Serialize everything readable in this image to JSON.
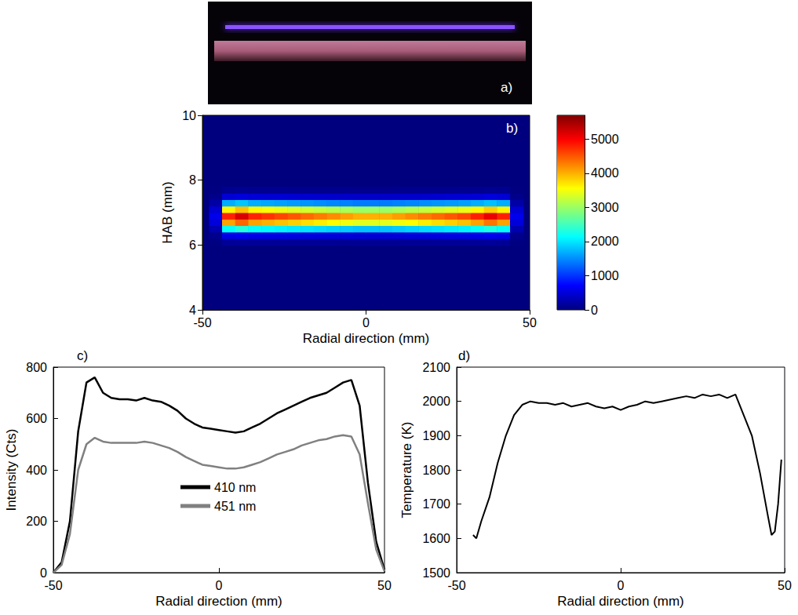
{
  "chart_data": [
    {
      "type": "image",
      "panel_label": "a)"
    },
    {
      "type": "heatmap",
      "panel_label": "b)",
      "x_label": "Radial direction (mm)",
      "y_label": "HAB (mm)",
      "xlim": [
        -50,
        50
      ],
      "xticks": [
        -50,
        0,
        50
      ],
      "ylim": [
        4,
        10
      ],
      "yticks": [
        4,
        6,
        8,
        10
      ],
      "x": [
        -46,
        -42,
        -38,
        -34,
        -30,
        -26,
        -22,
        -18,
        -14,
        -10,
        -6,
        -2,
        2,
        6,
        10,
        14,
        18,
        22,
        26,
        30,
        34,
        38,
        42,
        46
      ],
      "y": [
        6.1,
        6.3,
        6.5,
        6.7,
        6.9,
        7.1,
        7.3,
        7.5,
        7.7
      ],
      "values": [
        [
          18,
          144,
          156,
          144,
          141,
          138,
          135,
          132,
          129,
          126,
          123,
          120,
          120,
          120,
          123,
          126,
          129,
          132,
          135,
          138,
          144,
          153,
          144,
          18
        ],
        [
          72,
          576,
          624,
          576,
          564,
          552,
          540,
          528,
          516,
          504,
          492,
          480,
          480,
          480,
          492,
          504,
          516,
          528,
          540,
          552,
          576,
          612,
          576,
          72
        ],
        [
          270,
          2160,
          2340,
          2160,
          2115,
          2070,
          2025,
          1980,
          1935,
          1890,
          1845,
          1800,
          1800,
          1800,
          1845,
          1890,
          1935,
          1980,
          2025,
          2070,
          2160,
          2295,
          2160,
          270
        ],
        [
          510,
          4080,
          4420,
          4080,
          3995,
          3910,
          3825,
          3740,
          3655,
          3570,
          3485,
          3400,
          3400,
          3400,
          3485,
          3570,
          3655,
          3740,
          3825,
          3910,
          4080,
          4335,
          4080,
          510
        ],
        [
          600,
          4800,
          5200,
          4800,
          4700,
          4600,
          4500,
          4400,
          4300,
          4200,
          4100,
          4000,
          4000,
          4000,
          4100,
          4200,
          4300,
          4400,
          4500,
          4600,
          4800,
          5100,
          4800,
          600
        ],
        [
          450,
          3600,
          3900,
          3600,
          3525,
          3450,
          3375,
          3300,
          3225,
          3150,
          3075,
          3000,
          3000,
          3000,
          3075,
          3150,
          3225,
          3300,
          3375,
          3450,
          3600,
          3825,
          3600,
          450
        ],
        [
          210,
          1680,
          1820,
          1680,
          1645,
          1610,
          1575,
          1540,
          1505,
          1470,
          1435,
          1400,
          1400,
          1400,
          1435,
          1470,
          1505,
          1540,
          1575,
          1610,
          1680,
          1785,
          1680,
          210
        ],
        [
          60,
          480,
          520,
          480,
          470,
          460,
          450,
          440,
          430,
          420,
          410,
          400,
          400,
          400,
          410,
          420,
          430,
          440,
          450,
          460,
          480,
          510,
          480,
          60
        ],
        [
          12,
          96,
          104,
          96,
          94,
          92,
          90,
          88,
          86,
          84,
          82,
          80,
          80,
          80,
          82,
          84,
          86,
          88,
          90,
          92,
          96,
          102,
          96,
          12
        ]
      ],
      "colorbar": {
        "range": [
          0,
          5700
        ],
        "ticks": [
          0,
          1000,
          2000,
          3000,
          4000,
          5000
        ]
      }
    },
    {
      "type": "line",
      "panel_label": "c)",
      "x_label": "Radial direction (mm)",
      "y_label": "Intensity (Cts)",
      "xlim": [
        -50,
        50
      ],
      "xticks": [
        -50,
        0,
        50
      ],
      "ylim": [
        0,
        800
      ],
      "yticks": [
        0,
        200,
        400,
        600,
        800
      ],
      "legend": "bottom",
      "x": [
        -50,
        -47.5,
        -45,
        -42.5,
        -40,
        -37.5,
        -35,
        -32.5,
        -30,
        -27.5,
        -25,
        -22.5,
        -20,
        -17.5,
        -15,
        -12.5,
        -10,
        -7.5,
        -5,
        -2.5,
        0,
        2.5,
        5,
        7.5,
        10,
        12.5,
        15,
        17.5,
        20,
        22.5,
        25,
        27.5,
        30,
        32.5,
        35,
        37.5,
        40,
        42.5,
        45,
        47.5,
        50
      ],
      "series": [
        {
          "name": "410 nm",
          "color": "#000000",
          "values": [
            0,
            40,
            200,
            550,
            740,
            760,
            700,
            680,
            675,
            675,
            670,
            680,
            670,
            665,
            650,
            630,
            600,
            580,
            565,
            560,
            555,
            550,
            545,
            550,
            565,
            580,
            600,
            620,
            635,
            650,
            665,
            680,
            690,
            700,
            720,
            740,
            750,
            650,
            350,
            120,
            10
          ]
        },
        {
          "name": "451 nm",
          "color": "#808080",
          "values": [
            0,
            30,
            150,
            400,
            500,
            525,
            510,
            505,
            505,
            505,
            505,
            510,
            505,
            495,
            485,
            470,
            450,
            435,
            420,
            415,
            410,
            405,
            405,
            410,
            420,
            430,
            445,
            460,
            470,
            480,
            495,
            505,
            515,
            520,
            530,
            535,
            530,
            460,
            270,
            90,
            5
          ]
        }
      ]
    },
    {
      "type": "line",
      "panel_label": "d)",
      "x_label": "Radial direction (mm)",
      "y_label": "Temperature (K)",
      "xlim": [
        -50,
        50
      ],
      "xticks": [
        -50,
        0,
        50
      ],
      "ylim": [
        1500,
        2100
      ],
      "yticks": [
        1500,
        1600,
        1700,
        1800,
        1900,
        2000,
        2100
      ],
      "x": [
        -45,
        -44,
        -42.5,
        -40,
        -37.5,
        -35,
        -32.5,
        -30,
        -27.5,
        -25,
        -22.5,
        -20,
        -17.5,
        -15,
        -12.5,
        -10,
        -7.5,
        -5,
        -2.5,
        0,
        2.5,
        5,
        7.5,
        10,
        12.5,
        15,
        17.5,
        20,
        22.5,
        25,
        27.5,
        30,
        32.5,
        35,
        37.5,
        40,
        42.5,
        45,
        46,
        47,
        48,
        49
      ],
      "series": [
        {
          "color": "#000000",
          "values": [
            1610,
            1600,
            1650,
            1720,
            1820,
            1900,
            1960,
            1990,
            2000,
            1995,
            1995,
            1990,
            1995,
            1985,
            1990,
            1995,
            1985,
            1980,
            1985,
            1975,
            1985,
            1990,
            2000,
            1995,
            2000,
            2005,
            2010,
            2015,
            2010,
            2020,
            2015,
            2020,
            2010,
            2020,
            1960,
            1900,
            1790,
            1660,
            1610,
            1620,
            1700,
            1830
          ]
        }
      ]
    }
  ]
}
